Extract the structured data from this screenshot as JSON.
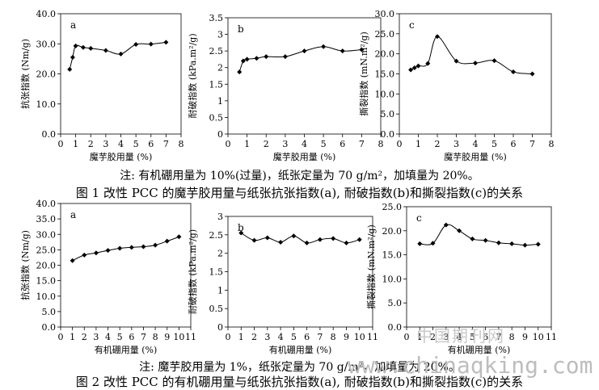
{
  "notes": {
    "fig1_note": "注: 有机硼用量为 10%(过量)，纸张定量为 70 g/m²，加填量为 20%。",
    "fig1_title": "图 1  改性 PCC 的魔芋胶用量与纸张抗张指数(a), 耐破指数(b)和撕裂指数(c)的关系",
    "fig2_note": "注: 魔芋胶用量为 1%，纸张定量为 70 g/m²，加填量为 20%。",
    "fig2_title": "图 2  改性 PCC 的有机硼用量与纸张抗张指数(a), 耐破指数(b)和撕裂指数(c)的关系"
  },
  "watermark": {
    "cn": "中国期刊网",
    "url": "www.chinaqking.com"
  },
  "chart_data": [
    {
      "id": "fig1a",
      "type": "line",
      "panel_label": "a",
      "xlabel": "魔芋胶用量 (%)",
      "ylabel": "抗张指数 (Nm/g)",
      "xlim": [
        0,
        8
      ],
      "ylim": [
        0,
        40
      ],
      "xticks": [
        "0",
        "1",
        "2",
        "3",
        "4",
        "5",
        "6",
        "7",
        "8"
      ],
      "yticks": [
        "0.0",
        "10.0",
        "20.0",
        "30.0",
        "40.0"
      ],
      "x": [
        0.6,
        0.8,
        1.0,
        1.5,
        2.0,
        3.0,
        4.0,
        5.0,
        6.0,
        7.0
      ],
      "y": [
        21.5,
        25.5,
        29.3,
        28.8,
        28.5,
        27.8,
        26.6,
        29.8,
        29.9,
        30.5
      ]
    },
    {
      "id": "fig1b",
      "type": "line",
      "panel_label": "b",
      "xlabel": "魔芋胶用量 (%)",
      "ylabel": "耐破指数 (kPa.m²/g)",
      "xlim": [
        0,
        8
      ],
      "ylim": [
        0,
        3.5
      ],
      "xticks": [
        "0",
        "1",
        "2",
        "3",
        "4",
        "5",
        "6",
        "7",
        "8"
      ],
      "yticks": [
        "0",
        "0.5",
        "1",
        "1.5",
        "2",
        "2.5",
        "3",
        "3.5"
      ],
      "x": [
        0.6,
        0.8,
        1.0,
        1.5,
        2.0,
        3.0,
        4.0,
        5.0,
        6.0,
        7.0
      ],
      "y": [
        1.87,
        2.2,
        2.25,
        2.28,
        2.33,
        2.33,
        2.5,
        2.63,
        2.5,
        2.54
      ]
    },
    {
      "id": "fig1c",
      "type": "line",
      "panel_label": "c",
      "xlabel": "魔芋胶用量 (%)",
      "ylabel": "撕裂指数 (mN.m²/g)",
      "xlim": [
        0,
        8
      ],
      "ylim": [
        0,
        30
      ],
      "xticks": [
        "0",
        "1",
        "2",
        "3",
        "4",
        "5",
        "6",
        "7",
        "8"
      ],
      "yticks": [
        "0.0",
        "5.0",
        "10.0",
        "15.0",
        "20.0",
        "25.0",
        "30.0"
      ],
      "x": [
        0.6,
        0.8,
        1.0,
        1.5,
        2.0,
        3.0,
        4.0,
        5.0,
        6.0,
        7.0
      ],
      "y": [
        16.0,
        16.5,
        17.0,
        17.6,
        24.3,
        18.2,
        17.7,
        18.3,
        15.5,
        15.0
      ]
    },
    {
      "id": "fig2a",
      "type": "line",
      "panel_label": "a",
      "xlabel": "有机硼用量 (%)",
      "ylabel": "抗张指数 (Nm/g)",
      "xlim": [
        0,
        11
      ],
      "ylim": [
        0,
        40
      ],
      "xticks": [
        "0",
        "1",
        "2",
        "3",
        "4",
        "5",
        "6",
        "7",
        "8",
        "9",
        "10",
        "11"
      ],
      "yticks": [
        "0.0",
        "5.0",
        "10.0",
        "15.0",
        "20.0",
        "25.0",
        "30.0",
        "35.0",
        "40.0"
      ],
      "x": [
        1,
        2,
        3,
        4,
        5,
        6,
        7,
        8,
        9,
        10
      ],
      "y": [
        21.5,
        23.3,
        24.0,
        24.8,
        25.5,
        25.8,
        26.0,
        26.5,
        27.8,
        29.2
      ]
    },
    {
      "id": "fig2b",
      "type": "line",
      "panel_label": "b",
      "xlabel": "有机硼用量 (%)",
      "ylabel": "耐破指数 (kPa.m²/g)",
      "xlim": [
        0,
        11
      ],
      "ylim": [
        0,
        3
      ],
      "xticks": [
        "0",
        "1",
        "2",
        "3",
        "4",
        "5",
        "6",
        "7",
        "8",
        "9",
        "10",
        "11"
      ],
      "yticks": [
        "0",
        "0.5",
        "1",
        "1.5",
        "2",
        "2.5",
        "3"
      ],
      "x": [
        1,
        2,
        3,
        4,
        5,
        6,
        7,
        8,
        9,
        10
      ],
      "y": [
        2.55,
        2.35,
        2.42,
        2.3,
        2.47,
        2.28,
        2.37,
        2.4,
        2.28,
        2.37
      ]
    },
    {
      "id": "fig2c",
      "type": "line",
      "panel_label": "c",
      "xlabel": "有机硼用量 (%)",
      "ylabel": "撕裂指数 (mN.m²/g)",
      "xlim": [
        0,
        11
      ],
      "ylim": [
        0,
        25
      ],
      "xticks": [
        "0",
        "1",
        "2",
        "3",
        "4",
        "5",
        "6",
        "7",
        "8",
        "9",
        "10",
        "11"
      ],
      "yticks": [
        "0.0",
        "5.0",
        "10.0",
        "15.0",
        "20.0",
        "25.0"
      ],
      "x": [
        1,
        2,
        3,
        4,
        5,
        6,
        7,
        8,
        9,
        10
      ],
      "y": [
        17.3,
        17.4,
        21.2,
        20.0,
        18.3,
        18.0,
        17.5,
        17.3,
        17.0,
        17.2
      ]
    }
  ]
}
